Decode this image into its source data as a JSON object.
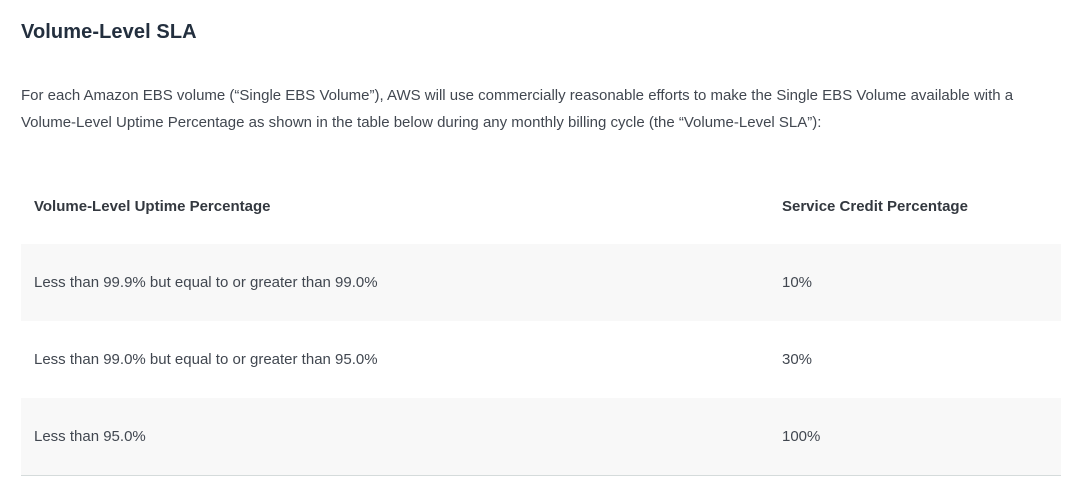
{
  "section": {
    "title": "Volume-Level SLA",
    "intro": "For each Amazon EBS volume (“Single EBS Volume”), AWS will use commercially reasonable efforts to make the Single EBS Volume available with a Volume-Level Uptime Percentage as shown in the table below during any monthly billing cycle (the “Volume-Level SLA”):"
  },
  "table": {
    "columns": [
      "Volume-Level Uptime Percentage",
      "Service Credit Percentage"
    ],
    "rows": [
      {
        "uptime": "Less than 99.9% but equal to or greater than 99.0%",
        "credit": "10%"
      },
      {
        "uptime": "Less than 99.0% but equal to or greater than 95.0%",
        "credit": "30%"
      },
      {
        "uptime": "Less than 95.0%",
        "credit": "100%"
      }
    ]
  },
  "colors": {
    "heading": "#232f3e",
    "body_text": "#414750",
    "row_shading": "#f8f8f8",
    "table_border": "#d5dbdb",
    "background": "#ffffff"
  }
}
